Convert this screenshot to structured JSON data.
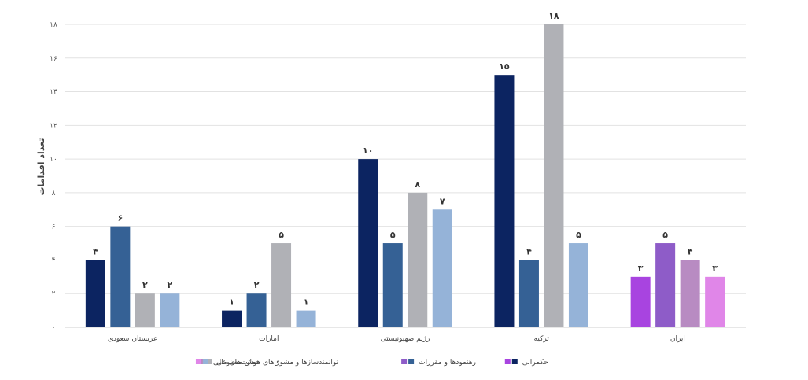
{
  "chart_data": {
    "type": "bar",
    "title": "",
    "xlabel": "",
    "ylabel": "تعداد اقدامات",
    "ylim": [
      0,
      18
    ],
    "y_ticks": [
      "۰",
      "۲",
      "۴",
      "۶",
      "۸",
      "۱۰",
      "۱۲",
      "۱۴",
      "۱۶",
      "۱۸"
    ],
    "grid": true,
    "legend_position": "bottom",
    "categories": [
      "عربستان سعودی",
      "امارات",
      "رژیم صهیونیستی",
      "ترکیه",
      "ایران"
    ],
    "series": [
      {
        "name": "حکمرانی",
        "colors": [
          "#0c2461",
          "#0c2461",
          "#0c2461",
          "#0c2461",
          "#a844e0"
        ],
        "values": [
          4,
          1,
          10,
          15,
          3
        ],
        "labels": [
          "۴",
          "۱",
          "۱۰",
          "۱۵",
          "۳"
        ]
      },
      {
        "name": "رهنمودها و مقررات",
        "colors": [
          "#356195",
          "#356195",
          "#356195",
          "#356195",
          "#8e5cc8"
        ],
        "values": [
          6,
          2,
          5,
          4,
          5
        ],
        "labels": [
          "۶",
          "۲",
          "۵",
          "۴",
          "۵"
        ]
      },
      {
        "name": "توانمندسازها و مشوق‌های هوش مصنوعی",
        "colors": [
          "#b0b1b6",
          "#b0b1b6",
          "#b0b1b6",
          "#b0b1b6",
          "#b88bc2"
        ],
        "values": [
          2,
          5,
          8,
          18,
          4
        ],
        "labels": [
          "۲",
          "۵",
          "۸",
          "۱۸",
          "۴"
        ]
      },
      {
        "name": "حمایت‌های مالی",
        "colors": [
          "#95b3d8",
          "#95b3d8",
          "#95b3d8",
          "#95b3d8",
          "#e086e8"
        ],
        "values": [
          2,
          1,
          7,
          5,
          3
        ],
        "labels": [
          "۲",
          "۱",
          "۷",
          "۵",
          "۳"
        ]
      }
    ],
    "legend_swatch_colors": [
      [
        "#0c2461",
        "#a844e0"
      ],
      [
        "#356195",
        "#8e5cc8"
      ],
      [
        "#b0b1b6",
        "#b88bc2"
      ],
      [
        "#95b3d8",
        "#e086e8"
      ]
    ]
  }
}
